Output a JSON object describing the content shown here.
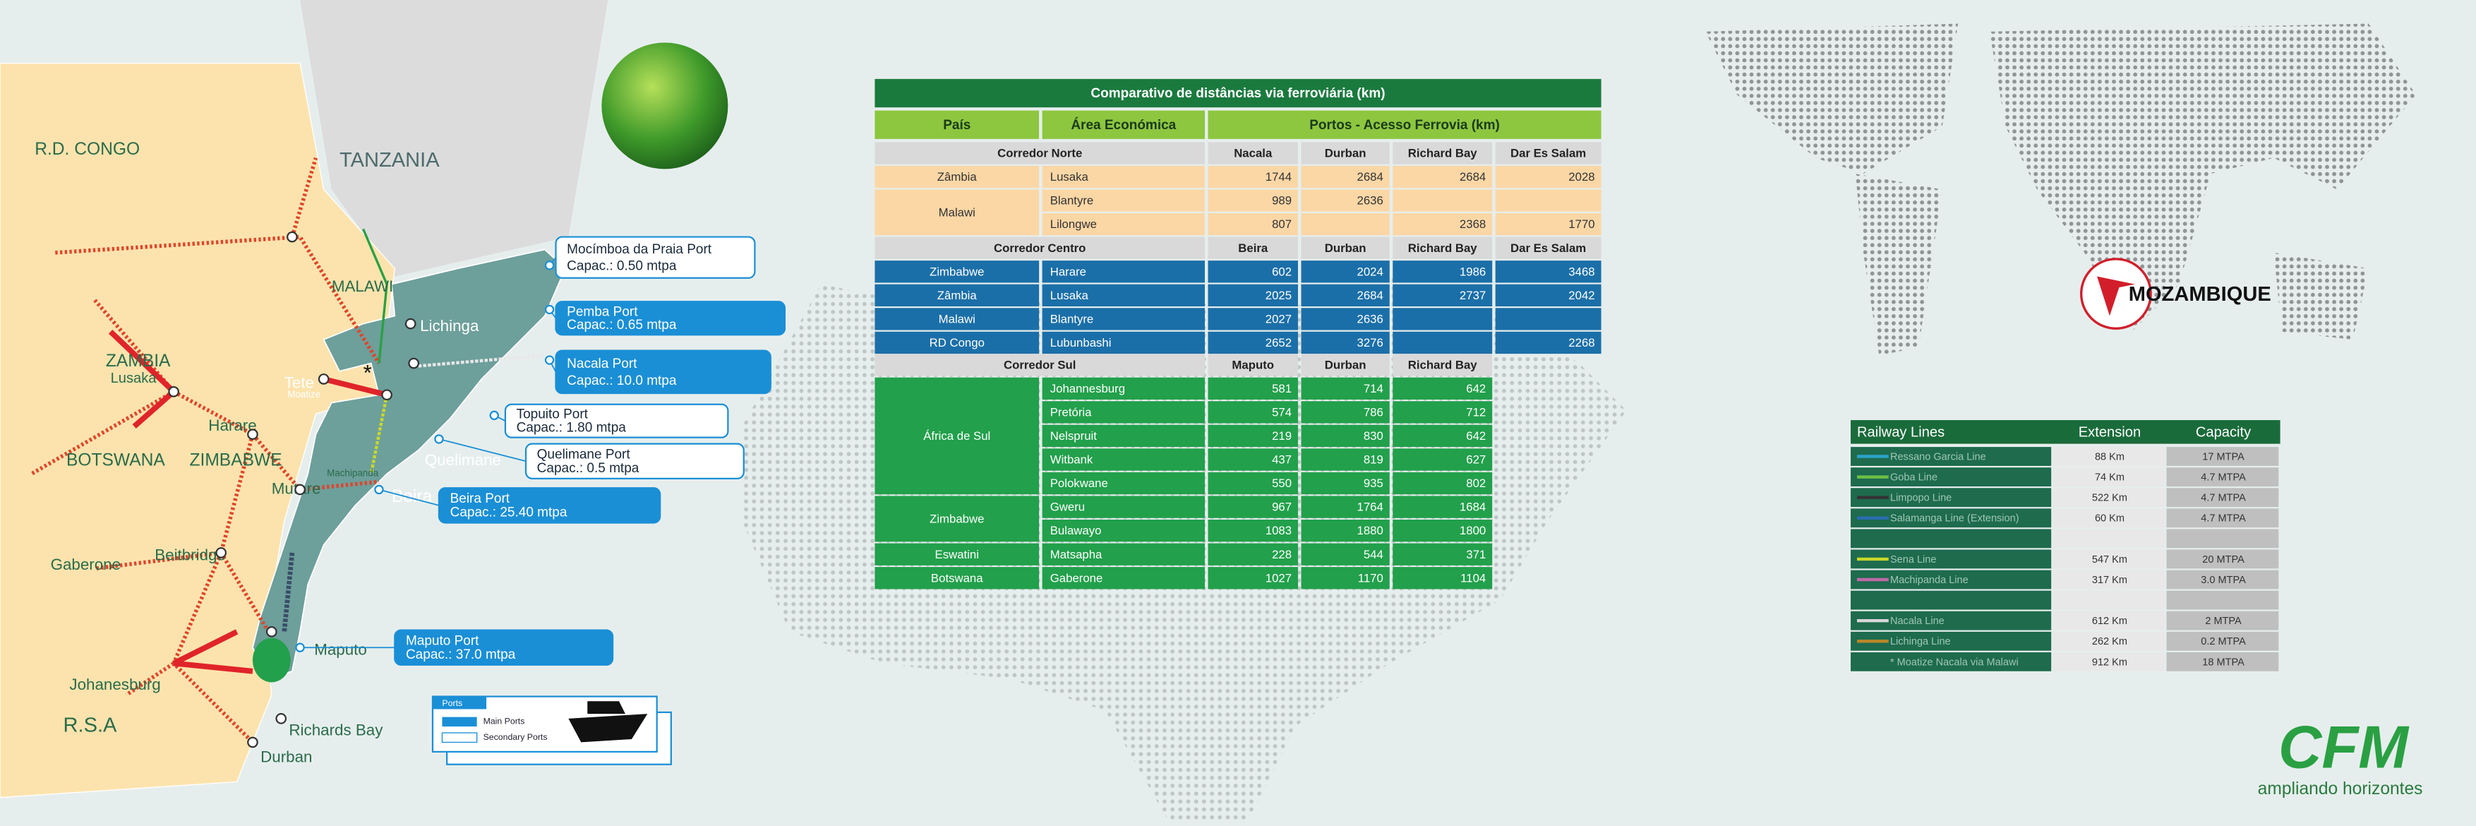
{
  "map": {
    "labels": [
      "R.D. CONGO",
      "TANZANIA",
      "MALAWI",
      "ZAMBIA",
      "Lusaka",
      "Tete",
      "Moatize",
      "Lichinga",
      "Harare",
      "ZIMBABWE",
      "BOTSWANA",
      "Mutare",
      "Machipanda",
      "Quelimane",
      "Beira",
      "Gaberone",
      "Beitbridge",
      "Maputo",
      "Johanesburg",
      "R.S.A",
      "Richards Bay",
      "Durban",
      "*"
    ],
    "ports": [
      {
        "name": "Mocímboa da Praia Port",
        "capacity": "Capac.: 0.50 mtpa",
        "kind": "secondary"
      },
      {
        "name": "Pemba Port",
        "capacity": "Capac.: 0.65 mtpa",
        "kind": "main"
      },
      {
        "name": "Nacala Port",
        "capacity": "Capac.: 10.0 mtpa",
        "kind": "main"
      },
      {
        "name": "Topuito Port",
        "capacity": "Capac.: 1.80 mtpa",
        "kind": "secondary"
      },
      {
        "name": "Quelimane Port",
        "capacity": "Capac.: 0.5 mtpa",
        "kind": "secondary"
      },
      {
        "name": "Beira Port",
        "capacity": "Capac.: 25.40 mtpa",
        "kind": "main"
      },
      {
        "name": "Maputo Port",
        "capacity": "Capac.: 37.0 mtpa",
        "kind": "main"
      }
    ]
  },
  "legend": {
    "title": "Ports",
    "main": "Main Ports",
    "secondary": "Secondary Ports"
  },
  "distance_table": {
    "title": "Comparativo de distâncias via ferroviária (km)",
    "headers": [
      "País",
      "Área Económica",
      "Portos - Acesso Ferrovia (km)"
    ],
    "sections": [
      {
        "name": "Corredor Norte",
        "color": "#fbd7a6",
        "text_color": "#333333",
        "ports": [
          "Nacala",
          "Durban",
          "Richard Bay",
          "Dar Es Salam"
        ],
        "groups": [
          {
            "country": "Zâmbia",
            "rows": [
              {
                "area": "Lusaka",
                "values": [
                  1744,
                  2684,
                  2684,
                  2028
                ]
              }
            ]
          },
          {
            "country": "Malawi",
            "rows": [
              {
                "area": "Blantyre",
                "values": [
                  989,
                  2636,
                  null,
                  null
                ]
              },
              {
                "area": "Lilongwe",
                "values": [
                  807,
                  null,
                  2368,
                  1770
                ]
              }
            ]
          }
        ]
      },
      {
        "name": "Corredor Centro",
        "color": "#1b6fa8",
        "text_color": "#ffffff",
        "ports": [
          "Beira",
          "Durban",
          "Richard Bay",
          "Dar Es Salam"
        ],
        "groups": [
          {
            "country": "Zimbabwe",
            "rows": [
              {
                "area": "Harare",
                "values": [
                  602,
                  2024,
                  1986,
                  3468
                ]
              }
            ]
          },
          {
            "country": "Zâmbia",
            "rows": [
              {
                "area": "Lusaka",
                "values": [
                  2025,
                  2684,
                  2737,
                  2042
                ]
              }
            ]
          },
          {
            "country": "Malawi",
            "rows": [
              {
                "area": "Blantyre",
                "values": [
                  2027,
                  2636,
                  null,
                  null
                ]
              }
            ]
          },
          {
            "country": "RD Congo",
            "rows": [
              {
                "area": "Lubunbashi",
                "values": [
                  2652,
                  3276,
                  null,
                  2268
                ]
              }
            ]
          }
        ]
      },
      {
        "name": "Corredor Sul",
        "color": "#22a04b",
        "text_color": "#ffffff",
        "ports": [
          "Maputo",
          "Durban",
          "Richard Bay"
        ],
        "groups": [
          {
            "country": "África de Sul",
            "rows": [
              {
                "area": "Johannesburg",
                "values": [
                  581,
                  714,
                  642
                ]
              },
              {
                "area": "Pretória",
                "values": [
                  574,
                  786,
                  712
                ]
              },
              {
                "area": "Nelspruit",
                "values": [
                  219,
                  830,
                  642
                ]
              },
              {
                "area": "Witbank",
                "values": [
                  437,
                  819,
                  627
                ]
              },
              {
                "area": "Polokwane",
                "values": [
                  550,
                  935,
                  802
                ]
              }
            ]
          },
          {
            "country": "Zimbabwe",
            "rows": [
              {
                "area": "Gweru",
                "values": [
                  967,
                  1764,
                  1684
                ]
              },
              {
                "area": "Bulawayo",
                "values": [
                  1083,
                  1880,
                  1800
                ]
              }
            ]
          },
          {
            "country": "Eswatini",
            "rows": [
              {
                "area": "Matsapha",
                "values": [
                  228,
                  544,
                  371
                ]
              }
            ]
          },
          {
            "country": "Botswana",
            "rows": [
              {
                "area": "Gaberone",
                "values": [
                  1027,
                  1170,
                  1104
                ]
              }
            ]
          }
        ]
      }
    ]
  },
  "railway_table": {
    "headers": [
      "Railway Lines",
      "Extension",
      "Capacity"
    ],
    "rows": [
      {
        "name": "Ressano Garcia Line",
        "extension": "88 Km",
        "capacity": "17 MTPA",
        "color": "#2aa3c8"
      },
      {
        "name": "Goba Line",
        "extension": "74 Km",
        "capacity": "4.7 MTPA",
        "color": "#6cbf45"
      },
      {
        "name": "Limpopo Line",
        "extension": "522 Km",
        "capacity": "4.7 MTPA",
        "color": "#333333"
      },
      {
        "name": "Salamanga Line (Extension)",
        "extension": "60 Km",
        "capacity": "4.7 MTPA",
        "color": "#2a6db0"
      },
      {
        "name": "Sena Line",
        "extension": "547 Km",
        "capacity": "20 MTPA",
        "color": "#c8d82a"
      },
      {
        "name": "Machipanda Line",
        "extension": "317 Km",
        "capacity": "3.0 MTPA",
        "color": "#c06aa8"
      },
      {
        "name": "Nacala Line",
        "extension": "612 Km",
        "capacity": "2 MTPA",
        "color": "#d8d8d8"
      },
      {
        "name": "Lichinga Line",
        "extension": "262 Km",
        "capacity": "0.2 MTPA",
        "color": "#b8862a"
      },
      {
        "name": "* Moatize Nacala via Malawi",
        "extension": "912 Km",
        "capacity": "18 MTPA",
        "color": "#1e6b4e"
      }
    ]
  },
  "world_map": {
    "label": "MOZAMBIQUE"
  },
  "logo": {
    "mark": "CFM",
    "tagline": "ampliando horizontes"
  }
}
